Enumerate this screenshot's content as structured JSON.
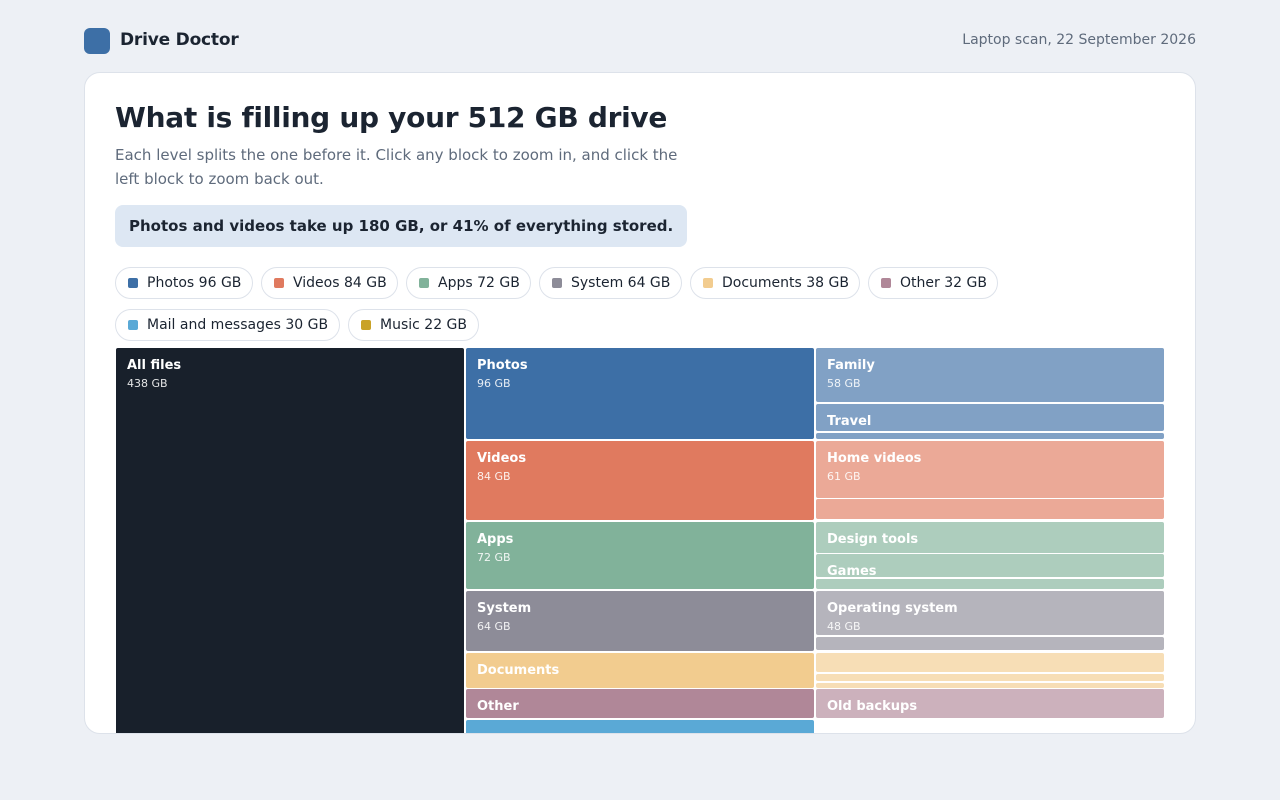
{
  "app": {
    "title": "Drive Doctor",
    "scan_label": "Laptop scan, 22 September 2026",
    "brand_color": "#3d6fa6"
  },
  "main": {
    "headline": "What is filling up your 512 GB drive",
    "subtext": "Each level splits the one before it. Click any block to zoom in, and click the left block to zoom back out.",
    "insight": "Photos and videos take up 180 GB, or 41% of everything stored."
  },
  "legend": [
    {
      "label": "Photos 96 GB",
      "color": "#3d6fa6"
    },
    {
      "label": "Videos 84 GB",
      "color": "#e07a5f"
    },
    {
      "label": "Apps 72 GB",
      "color": "#81b29a"
    },
    {
      "label": "System 64 GB",
      "color": "#8d8c98"
    },
    {
      "label": "Documents 38 GB",
      "color": "#f2cc8f"
    },
    {
      "label": "Other 32 GB",
      "color": "#b08798"
    },
    {
      "label": "Mail and messages 30 GB",
      "color": "#5aa9d6"
    },
    {
      "label": "Music 22 GB",
      "color": "#c9a227"
    }
  ],
  "treemap": {
    "root": {
      "name": "All files",
      "size": "438 GB",
      "color": "#18202b"
    },
    "categories": [
      {
        "name": "Photos",
        "size": "96 GB",
        "value": 96,
        "color": "#3d6fa6",
        "children": [
          {
            "name": "Family",
            "size": "58 GB",
            "value": 58
          },
          {
            "name": "Travel",
            "size": "",
            "value": 30
          },
          {
            "name": "",
            "size": "",
            "value": 8
          }
        ]
      },
      {
        "name": "Videos",
        "size": "84 GB",
        "value": 84,
        "color": "#e07a5f",
        "children": [
          {
            "name": "Home videos",
            "size": "61 GB",
            "value": 61
          },
          {
            "name": "",
            "size": "",
            "value": 23
          }
        ]
      },
      {
        "name": "Apps",
        "size": "72 GB",
        "value": 72,
        "color": "#81b29a",
        "children": [
          {
            "name": "Design tools",
            "size": "",
            "value": 34
          },
          {
            "name": "Games",
            "size": "",
            "value": 26
          },
          {
            "name": "",
            "size": "",
            "value": 12
          }
        ]
      },
      {
        "name": "System",
        "size": "64 GB",
        "value": 64,
        "color": "#8d8c98",
        "children": [
          {
            "name": "Operating system",
            "size": "48 GB",
            "value": 48
          },
          {
            "name": "",
            "size": "",
            "value": 16
          }
        ]
      },
      {
        "name": "Documents",
        "size": "",
        "value": 38,
        "color": "#f2cc8f",
        "children": [
          {
            "name": "",
            "size": "",
            "value": 22
          },
          {
            "name": "",
            "size": "",
            "value": 9
          },
          {
            "name": "",
            "size": "",
            "value": 7
          }
        ]
      },
      {
        "name": "Other",
        "size": "",
        "value": 32,
        "color": "#b08798",
        "children": [
          {
            "name": "Old backups",
            "size": "",
            "value": 32
          }
        ]
      },
      {
        "name": "",
        "size": "",
        "value": 30,
        "color": "#5aa9d6",
        "children": []
      },
      {
        "name": "",
        "size": "",
        "value": 22,
        "color": "#c9a227",
        "children": []
      }
    ]
  }
}
